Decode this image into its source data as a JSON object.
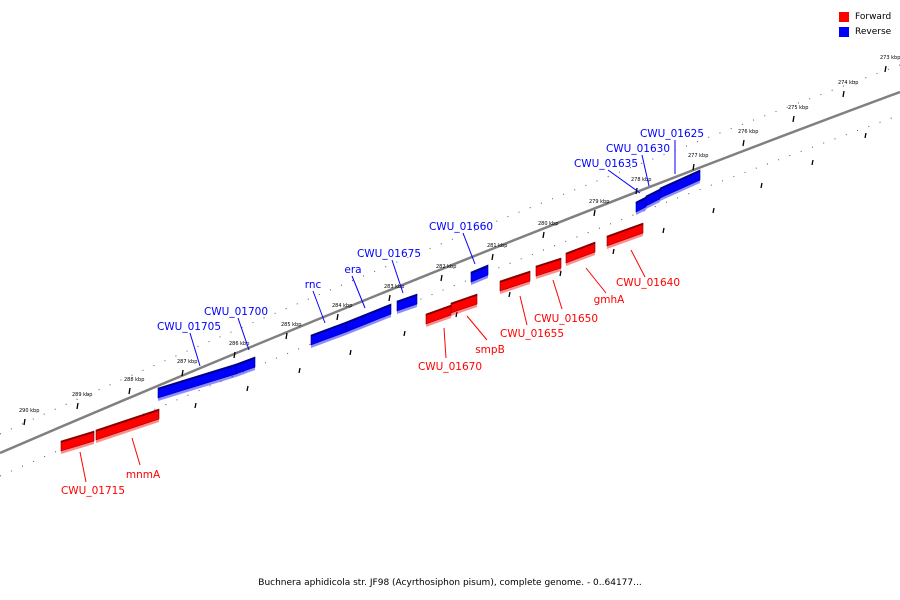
{
  "colors": {
    "forward": "#ff0000",
    "reverse": "#0000ff",
    "backbone": "#808080"
  },
  "legend": [
    {
      "label": "Forward",
      "color": "#ff0000"
    },
    {
      "label": "Reverse",
      "color": "#0000ff"
    }
  ],
  "caption": "Buchnera aphidicola str. JF98 (Acyrthosiphon pisum), complete genome. - 0..64177...",
  "ticks": [
    "273 kbp",
    "274 kbp",
    "275 kbp",
    "276 kbp",
    "277 kbp",
    "278 kbp",
    "279 kbp",
    "280 kbp",
    "281 kbp",
    "282 kbp",
    "283 kbp",
    "284 kbp",
    "285 kbp",
    "286 kbp",
    "287 kbp",
    "288 kbp",
    "289 kbp",
    "290 kbp"
  ],
  "genes": {
    "reverse": [
      {
        "name": "CWU_01625"
      },
      {
        "name": "CWU_01630"
      },
      {
        "name": "CWU_01635"
      },
      {
        "name": "CWU_01660"
      },
      {
        "name": "CWU_01675"
      },
      {
        "name": "era"
      },
      {
        "name": "rnc"
      },
      {
        "name": "CWU_01700"
      },
      {
        "name": "CWU_01705"
      }
    ],
    "forward": [
      {
        "name": "CWU_01640"
      },
      {
        "name": "gmhA"
      },
      {
        "name": "CWU_01650"
      },
      {
        "name": "CWU_01655"
      },
      {
        "name": "smpB"
      },
      {
        "name": "CWU_01670"
      },
      {
        "name": "mnmA"
      },
      {
        "name": "CWU_01715"
      }
    ]
  }
}
